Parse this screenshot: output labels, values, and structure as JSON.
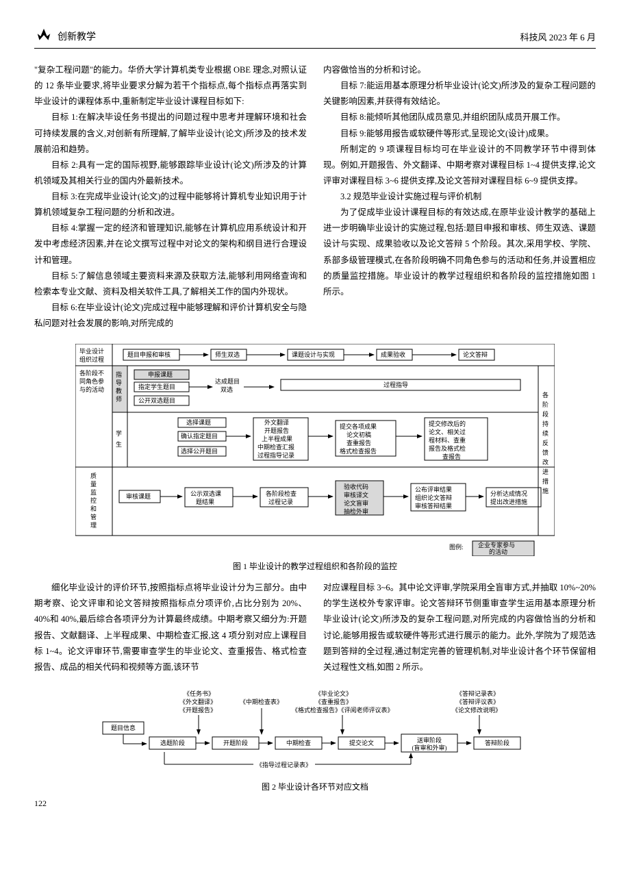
{
  "header": {
    "section": "创新教学",
    "right": "科技风 2023 年 6 月"
  },
  "leftCol": {
    "p1": "\"复杂工程问题\"的能力。华侨大学计算机类专业根据 OBE 理念,对照认证的 12 条毕业要求,将毕业要求分解为若干个指标点,每个指标点再落实到毕业设计的课程体系中,重新制定毕业设计课程目标如下:",
    "p2": "目标 1:在解决毕设任务书提出的问题过程中思考并理解环境和社会可持续发展的含义,对创新有所理解,了解毕业设计(论文)所涉及的技术发展前沿和趋势。",
    "p3": "目标 2:具有一定的国际视野,能够跟踪毕业设计(论文)所涉及的计算机领域及其相关行业的国内外最新技术。",
    "p4": "目标 3:在完成毕业设计(论文)的过程中能够将计算机专业知识用于计算机领域复杂工程问题的分析和改进。",
    "p5": "目标 4:掌握一定的经济和管理知识,能够在计算机应用系统设计和开发中考虑经济因素,并在论文撰写过程中对论文的架构和纲目进行合理设计和管理。",
    "p6": "目标 5:了解信息领域主要资料来源及获取方法,能够利用网络查询和检索本专业文献、资料及相关软件工具,了解相关工作的国内外现状。",
    "p7": "目标 6:在毕业设计(论文)完成过程中能够理解和评价计算机安全与隐私问题对社会发展的影响,对所完成的"
  },
  "rightCol": {
    "p1": "内容做恰当的分析和讨论。",
    "p2": "目标 7:能运用基本原理分析毕业设计(论文)所涉及的复杂工程问题的关键影响因素,并获得有效结论。",
    "p3": "目标 8:能倾听其他团队成员意见,并组织团队成员开展工作。",
    "p4": "目标 9:能够用报告或软硬件等形式,呈现论文(设计)成果。",
    "p5": "所制定的 9 项课程目标均可在毕业设计的不同教学环节中得到体现。例如,开题报告、外文翻译、中期考察对课程目标 1~4 提供支撑,论文评审对课程目标 3~6 提供支撑,及论文答辩对课程目标 6~9 提供支撑。",
    "h1": "3.2 规范毕业设计实施过程与评价机制",
    "p6": "为了促成毕业设计课程目标的有效达成,在原毕业设计教学的基础上进一步明确毕业设计的实施过程,包括:题目申报和审核、师生双选、课题设计与实现、成果验收以及论文答辩 5 个阶段。其次,采用学校、学院、系部多级管理模式,在各阶段明确不同角色参与的活动和任务,并设置相应的质量监控措施。毕业设计的教学过程组织和各阶段的监控措施如图 1 所示。"
  },
  "fig1": {
    "caption": "图 1 毕业设计的教学过程组织和各阶段的监控",
    "row1Label": "毕业设计\n组织过程",
    "row2Label": "各阶段不\n同角色参\n与的活动",
    "row3Label": "质\n量\n监\n控\n和\n管\n理",
    "rightLabel": "各\n阶\n段\n持\n续\n反\n馈\n改\n进\n措\n施",
    "stages": [
      "题目申报和审核",
      "师生双选",
      "课题设计与实现",
      "成果验收",
      "论文答辩"
    ],
    "teacherLabel": "指\n导\n教\n师",
    "teacher": {
      "box1": "申报课题",
      "box2": "指定学生题目",
      "box3": "公开双选题目",
      "arrow1": "达成题目\n双选",
      "guide": "过程指导"
    },
    "studentLabel": "学\n生",
    "student": {
      "a1": "选择课题",
      "a2": "确认指定题目",
      "a3": "选择公开题目",
      "b": "外文翻译\n开题报告\n上半程成果\n中期检查汇报\n过程指导记录",
      "c": "提交各项成果\n论文初稿\n查重报告\n格式检查报告",
      "d": "提交修改后的\n论文、相关过\n程材料、查重\n报告及格式检\n查报告"
    },
    "qc": {
      "a": "审核课题",
      "b": "公示双选课\n题结果",
      "c": "各阶段检查\n过程记录",
      "d": "验收代码\n审核译文\n论文盲审\n抽检外审",
      "e": "公布评审结果\n组织论文答辩\n审核答辩结果",
      "f": "分析达成情况\n提出改进措施"
    },
    "legendLabel": "图例:",
    "legendBox": "企业专家参与\n的活动"
  },
  "bottomLeft": {
    "p1": "细化毕业设计的评价环节,按照指标点将毕业设计分为三部分。由中期考察、论文评审和论文答辩按照指标点分项评价,占比分别为 20%、40%和 40%,最后综合各项评分为计算最终成绩。中期考察又细分为:开题报告、文献翻译、上半程成果、中期检查汇报,这 4 项分别对应上课程目标 1~4。论文评审环节,需要审查学生的毕业论文、查重报告、格式检查报告、成品的相关代码和视频等方面,该环节"
  },
  "bottomRight": {
    "p1": "对应课程目标 3~6。其中论文评审,学院采用全盲审方式,并抽取 10%~20%的学生送校外专家评审。论文答辩环节侧重审查学生运用基本原理分析毕业设计(论文)所涉及的复杂工程问题,对所完成的内容做恰当的分析和讨论,能够用报告或软硬件等形式进行展示的能力。此外,学院为了规范选题到答辩的全过程,通过制定完善的管理机制,对毕业设计各个环节保留相关过程性文档,如图 2 所示。"
  },
  "fig2": {
    "caption": "图 2 毕业设计各环节对应文档",
    "top1": "《任务书》\n《外文翻译》\n《开题报告》",
    "top2": "《中期检查表》",
    "top3": "《毕业论文》\n《查重报告》\n《格式检查报告》《评阅老师评议表》",
    "top4": "《答辩记录表》\n《答辩评议表》\n《论文修改说明》",
    "left": "题目信息",
    "nodes": [
      "选题阶段",
      "开题阶段",
      "中期检查",
      "提交论文",
      "送审阶段\n(盲审和外审)",
      "答辩阶段"
    ],
    "bottom": "《指导过程记录表》"
  },
  "pageNum": "122",
  "colors": {
    "line": "#000000",
    "boxFill": "#ffffff",
    "shadedFill": "#d9d9d9"
  }
}
